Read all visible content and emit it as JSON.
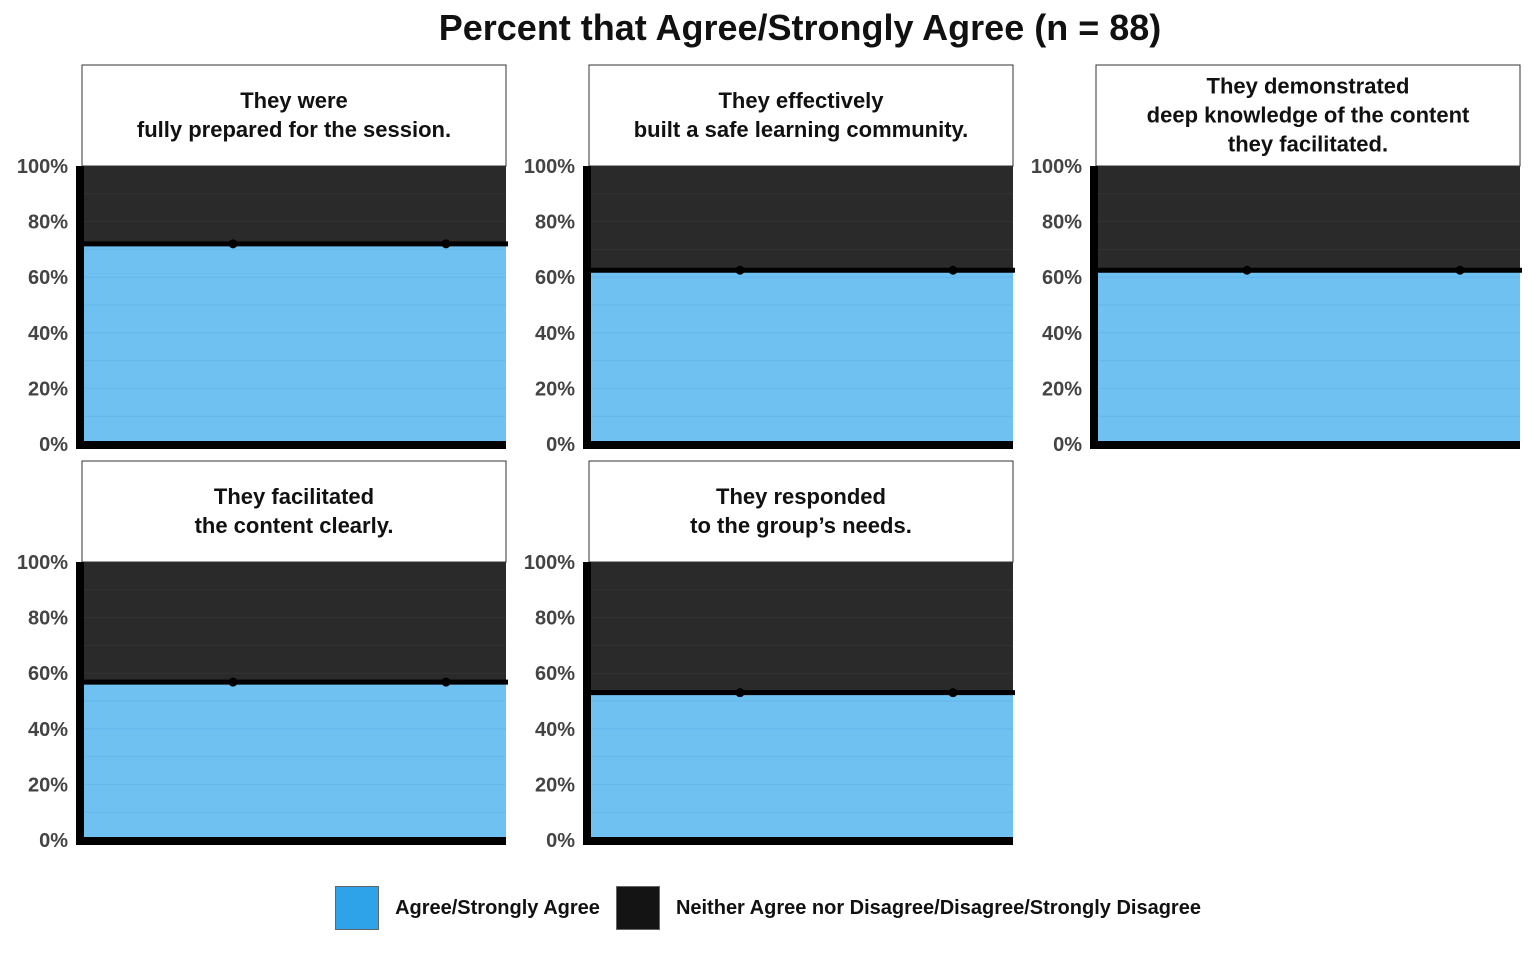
{
  "chart_data": {
    "type": "area",
    "title": "Percent that Agree/Strongly Agree (n = 88)",
    "y_tick_labels": [
      "0%",
      "20%",
      "40%",
      "60%",
      "80%",
      "100%"
    ],
    "ylim": [
      0,
      100
    ],
    "grid": false,
    "legend_placement": "bottom",
    "series": [
      {
        "name": "Agree/Strongly Agree",
        "color": "#2fa3e9"
      },
      {
        "name": "Neither Agree nor Disagree/Disagree/Strongly Disagree",
        "color": "#141414"
      }
    ],
    "panels": [
      {
        "title_lines": [
          "They were",
          "fully prepared for the session."
        ],
        "agree": 72,
        "neither": 28
      },
      {
        "title_lines": [
          "They effectively",
          "built a safe learning community."
        ],
        "agree": 62.5,
        "neither": 37.5
      },
      {
        "title_lines": [
          "They demonstrated",
          "deep knowledge of the content",
          "they facilitated."
        ],
        "agree": 62.5,
        "neither": 37.5
      },
      {
        "title_lines": [
          "They facilitated",
          "the content clearly."
        ],
        "agree": 56.8,
        "neither": 43.2
      },
      {
        "title_lines": [
          "They responded",
          "to the group’s needs."
        ],
        "agree": 53,
        "neither": 47
      }
    ]
  }
}
